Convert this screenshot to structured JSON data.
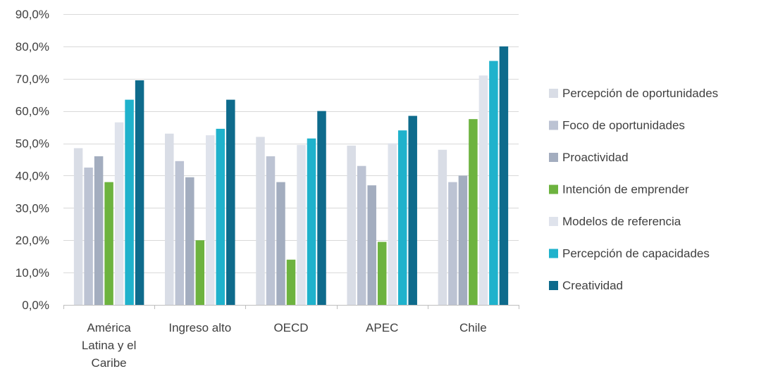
{
  "chart_data": {
    "type": "bar",
    "categories": [
      [
        "América",
        "Latina y el",
        "Caribe"
      ],
      [
        "Ingreso alto"
      ],
      [
        "OECD"
      ],
      [
        "APEC"
      ],
      [
        "Chile"
      ]
    ],
    "series": [
      {
        "name": "Percepción de oportunidades",
        "color": "#d9dde6",
        "values": [
          48.5,
          53.0,
          52.0,
          49.3,
          48.0
        ]
      },
      {
        "name": "Foco de oportunidades",
        "color": "#bcc3d3",
        "values": [
          42.5,
          44.5,
          46.0,
          43.0,
          38.0
        ]
      },
      {
        "name": "Proactividad",
        "color": "#a3adbf",
        "values": [
          46.0,
          39.5,
          38.0,
          37.0,
          40.0
        ]
      },
      {
        "name": "Intención de emprender",
        "color": "#6db33f",
        "values": [
          38.0,
          20.0,
          14.0,
          19.5,
          57.5
        ]
      },
      {
        "name": "Modelos de referencia",
        "color": "#dfe3ec",
        "values": [
          56.5,
          52.5,
          49.5,
          50.0,
          71.0
        ]
      },
      {
        "name": "Percepción de capacidades",
        "color": "#1fb2cc",
        "values": [
          63.5,
          54.5,
          51.5,
          54.0,
          75.5
        ]
      },
      {
        "name": "Creatividad",
        "color": "#0e6b8c",
        "values": [
          69.5,
          63.5,
          60.0,
          58.5,
          80.0
        ]
      }
    ],
    "ylim": [
      0,
      90
    ],
    "yticks": [
      0,
      10,
      20,
      30,
      40,
      50,
      60,
      70,
      80,
      90
    ],
    "ytick_labels": [
      "0,0%",
      "10,0%",
      "20,0%",
      "30,0%",
      "40,0%",
      "50,0%",
      "60,0%",
      "70,0%",
      "80,0%",
      "90,0%"
    ],
    "title": "",
    "xlabel": "",
    "ylabel": "",
    "grid": true,
    "legend_position": "right"
  }
}
